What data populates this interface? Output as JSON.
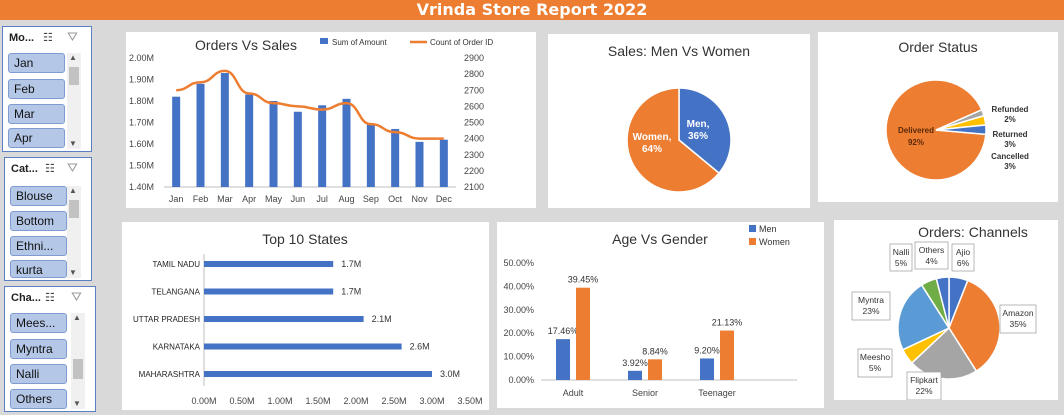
{
  "report_title": "Vrinda Store Report 2022",
  "slicers": {
    "month": {
      "header": "Mo...",
      "items": [
        "Jan",
        "Feb",
        "Mar",
        "Apr"
      ]
    },
    "category": {
      "header": "Cat...",
      "items": [
        "Blouse",
        "Bottom",
        "Ethni...",
        "kurta"
      ]
    },
    "channel": {
      "header": "Cha...",
      "items": [
        "Mees...",
        "Myntra",
        "Nalli",
        "Others"
      ]
    }
  },
  "icons": {
    "multiselect": "multi-select-icon",
    "clear_filter": "clear-filter-icon"
  },
  "colors": {
    "blue": "#4472c4",
    "orange": "#ed7d31",
    "gray": "#a5a5a5",
    "yellow": "#ffc000",
    "lightblue": "#5b9bd5",
    "green": "#70ad47"
  },
  "chart_data": [
    {
      "type": "bar",
      "title": "Orders Vs Sales",
      "categories": [
        "Jan",
        "Feb",
        "Mar",
        "Apr",
        "May",
        "Jun",
        "Jul",
        "Aug",
        "Sep",
        "Oct",
        "Nov",
        "Dec"
      ],
      "series": [
        {
          "name": "Sum of Amount",
          "type": "bar",
          "axis": "left",
          "values": [
            1.82,
            1.88,
            1.93,
            1.83,
            1.8,
            1.75,
            1.78,
            1.81,
            1.69,
            1.67,
            1.61,
            1.62
          ]
        },
        {
          "name": "Count of Order ID",
          "type": "line",
          "axis": "right",
          "values": [
            2700,
            2750,
            2820,
            2680,
            2620,
            2600,
            2580,
            2620,
            2490,
            2440,
            2400,
            2400
          ]
        }
      ],
      "y_left": {
        "range": [
          1.4,
          2.0
        ],
        "ticks": [
          "1.40M",
          "1.50M",
          "1.60M",
          "1.70M",
          "1.80M",
          "1.90M",
          "2.00M"
        ]
      },
      "y_right": {
        "range": [
          2100,
          2900
        ],
        "ticks": [
          "2100",
          "2200",
          "2300",
          "2400",
          "2500",
          "2600",
          "2700",
          "2800",
          "2900"
        ]
      },
      "legend": "top-right"
    },
    {
      "type": "pie",
      "title": "Sales: Men Vs Women",
      "slices": [
        {
          "label": "Men",
          "percent": "36%",
          "value": 36
        },
        {
          "label": "Women",
          "percent": "64%",
          "value": 64
        }
      ]
    },
    {
      "type": "pie",
      "title": "Order Status",
      "slices": [
        {
          "label": "Delivered",
          "percent": "92%",
          "value": 92
        },
        {
          "label": "Refunded",
          "percent": "2%",
          "value": 2
        },
        {
          "label": "Returned",
          "percent": "3%",
          "value": 3
        },
        {
          "label": "Cancelled",
          "percent": "3%",
          "value": 3
        }
      ]
    },
    {
      "type": "bar",
      "orientation": "horizontal",
      "title": "Top 10 States",
      "categories": [
        "TAMIL NADU",
        "TELANGANA",
        "UTTAR PRADESH",
        "KARNATAKA",
        "MAHARASHTRA"
      ],
      "values": [
        1.7,
        1.7,
        2.1,
        2.6,
        3.0
      ],
      "data_labels": [
        "1.7M",
        "1.7M",
        "2.1M",
        "2.6M",
        "3.0M"
      ],
      "xlim": [
        0,
        3.5
      ],
      "x_ticks": [
        "0.00M",
        "0.50M",
        "1.00M",
        "1.50M",
        "2.00M",
        "2.50M",
        "3.00M",
        "3.50M"
      ]
    },
    {
      "type": "bar",
      "title": "Age Vs Gender",
      "categories": [
        "Adult",
        "Senior",
        "Teenager"
      ],
      "series": [
        {
          "name": "Men",
          "values": [
            17.46,
            3.92,
            9.2
          ],
          "labels": [
            "17.46%",
            "3.92%",
            "9.20%"
          ]
        },
        {
          "name": "Women",
          "values": [
            39.45,
            8.84,
            21.13
          ],
          "labels": [
            "39.45%",
            "8.84%",
            "21.13%"
          ]
        }
      ],
      "ylim": [
        0,
        50
      ],
      "y_ticks": [
        "0.00%",
        "10.00%",
        "20.00%",
        "30.00%",
        "40.00%",
        "50.00%"
      ],
      "legend": "top-right"
    },
    {
      "type": "pie",
      "title": "Orders: Channels",
      "slices": [
        {
          "label": "Ajio",
          "percent": "6%",
          "value": 6
        },
        {
          "label": "Amazon",
          "percent": "35%",
          "value": 35
        },
        {
          "label": "Flipkart",
          "percent": "22%",
          "value": 22
        },
        {
          "label": "Meesho",
          "percent": "5%",
          "value": 5
        },
        {
          "label": "Myntra",
          "percent": "23%",
          "value": 23
        },
        {
          "label": "Nalli",
          "percent": "5%",
          "value": 5
        },
        {
          "label": "Others",
          "percent": "4%",
          "value": 4
        }
      ]
    }
  ]
}
